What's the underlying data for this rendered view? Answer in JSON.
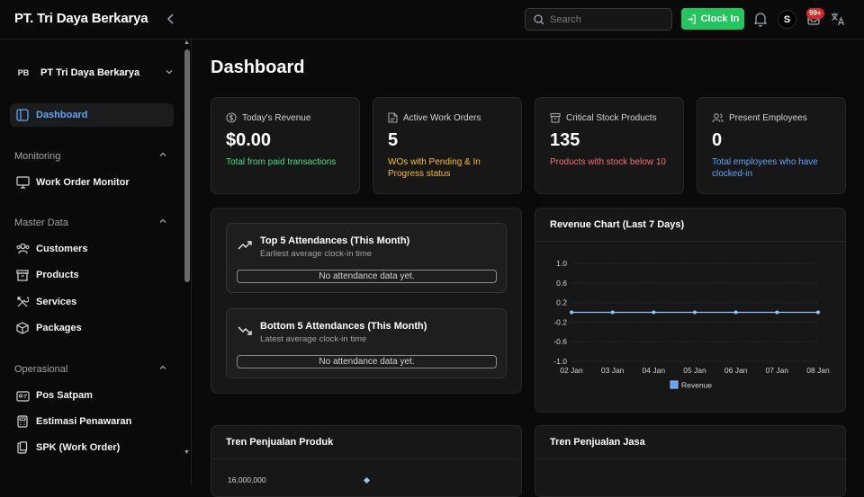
{
  "app": {
    "brand": "PT. Tri Daya Berkarya"
  },
  "header": {
    "search_placeholder": "Search",
    "clock_in_label": "Clock In",
    "avatar_initial": "S",
    "notification_badge": "99+"
  },
  "sidebar": {
    "org": {
      "logo": "PB",
      "name": "PT Tri Daya Berkarya"
    },
    "dashboard_label": "Dashboard",
    "sections": {
      "monitoring": {
        "title": "Monitoring",
        "items": [
          {
            "label": "Work Order Monitor",
            "icon": "monitor-icon"
          }
        ]
      },
      "master": {
        "title": "Master Data",
        "items": [
          {
            "label": "Customers",
            "icon": "users-icon"
          },
          {
            "label": "Products",
            "icon": "box-icon"
          },
          {
            "label": "Services",
            "icon": "tools-icon"
          },
          {
            "label": "Packages",
            "icon": "package-icon"
          }
        ]
      },
      "operasional": {
        "title": "Operasional",
        "items": [
          {
            "label": "Pos Satpam",
            "icon": "id-card-icon"
          },
          {
            "label": "Estimasi Penawaran",
            "icon": "calculator-icon"
          },
          {
            "label": "SPK (Work Order)",
            "icon": "clipboard-icon"
          }
        ]
      }
    }
  },
  "main": {
    "title": "Dashboard",
    "stats": [
      {
        "title": "Today's Revenue",
        "value": "$0.00",
        "subtitle": "Total from paid transactions",
        "color": "#4ade80",
        "icon": "dollar-icon"
      },
      {
        "title": "Active Work Orders",
        "value": "5",
        "subtitle": "WOs with Pending & In Progress status",
        "color": "#fbbf24",
        "icon": "document-icon"
      },
      {
        "title": "Critical Stock Products",
        "value": "135",
        "subtitle": "Products with stock below 10",
        "color": "#f87171",
        "icon": "archive-icon"
      },
      {
        "title": "Present Employees",
        "value": "0",
        "subtitle": "Total employees who have clocked-in",
        "color": "#60a5fa",
        "icon": "people-icon"
      }
    ],
    "attendance": {
      "top": {
        "title": "Top 5 Attendances (This Month)",
        "subtitle": "Earliest average clock-in time",
        "empty": "No attendance data yet."
      },
      "bottom": {
        "title": "Bottom 5 Attendances (This Month)",
        "subtitle": "Latest average clock-in time",
        "empty": "No attendance data yet."
      }
    },
    "revenue_chart_title": "Revenue Chart (Last 7 Days)",
    "product_trend_title": "Tren Penjualan Produk",
    "product_trend_first_tick": "16,000,000",
    "service_trend_title": "Tren Penjualan Jasa"
  },
  "chart_data": {
    "type": "line",
    "title": "Revenue Chart (Last 7 Days)",
    "categories": [
      "02 Jan",
      "03 Jan",
      "04 Jan",
      "05 Jan",
      "06 Jan",
      "07 Jan",
      "08 Jan"
    ],
    "series": [
      {
        "name": "Revenue",
        "values": [
          0,
          0,
          0,
          0,
          0,
          0,
          0
        ],
        "color": "#93c5fd"
      }
    ],
    "yticks": [
      "1.0",
      "0.6",
      "0.2",
      "-0.2",
      "-0.6",
      "-1.0"
    ],
    "ylim": [
      -1.0,
      1.0
    ],
    "grid": true,
    "legend": "bottom"
  }
}
